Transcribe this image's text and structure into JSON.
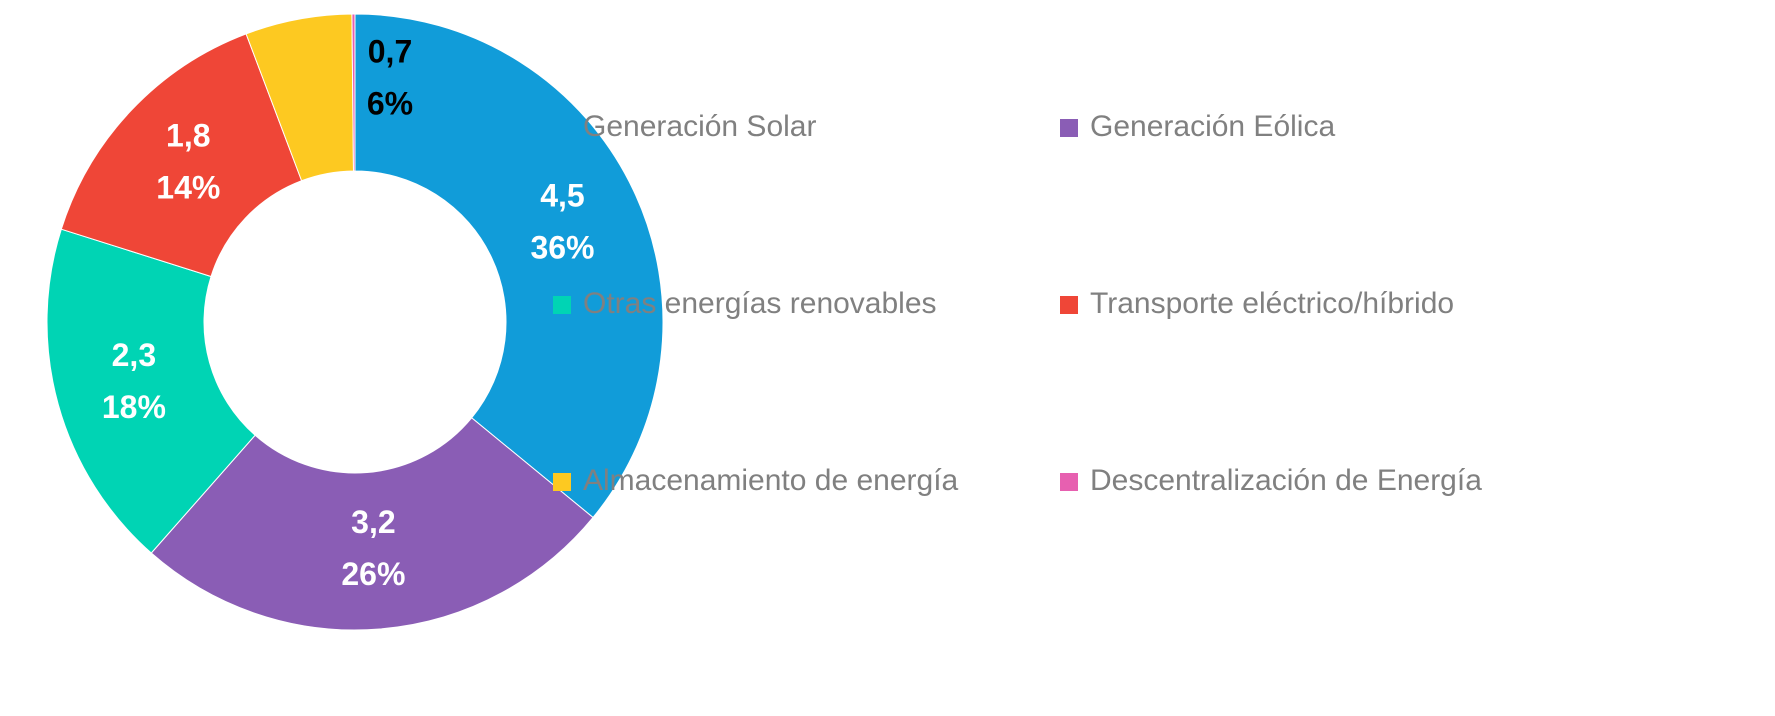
{
  "chart_data": {
    "type": "donut",
    "categories": [
      "Generación Solar",
      "Generación Eólica",
      "Otras energías renovables",
      "Transporte eléctrico/híbrido",
      "Almacenamiento de energía",
      "Descentralización de Energía"
    ],
    "values": [
      4.5,
      3.2,
      2.3,
      1.8,
      0.7,
      0.02
    ],
    "value_labels": [
      "4,5",
      "3,2",
      "2,3",
      "1,8",
      "0,7",
      null
    ],
    "percentages": [
      36,
      26,
      18,
      14,
      6,
      null
    ],
    "percentage_labels": [
      "36%",
      "26%",
      "18%",
      "14%",
      "6%",
      null
    ],
    "colors": [
      "#119cd9",
      "#8a5db5",
      "#00d4b4",
      "#ef4637",
      "#fdc921",
      "#e760b0"
    ],
    "label_colors": [
      "#ffffff",
      "#ffffff",
      "#ffffff",
      "#ffffff",
      "#000000",
      null
    ],
    "legend": "right"
  }
}
